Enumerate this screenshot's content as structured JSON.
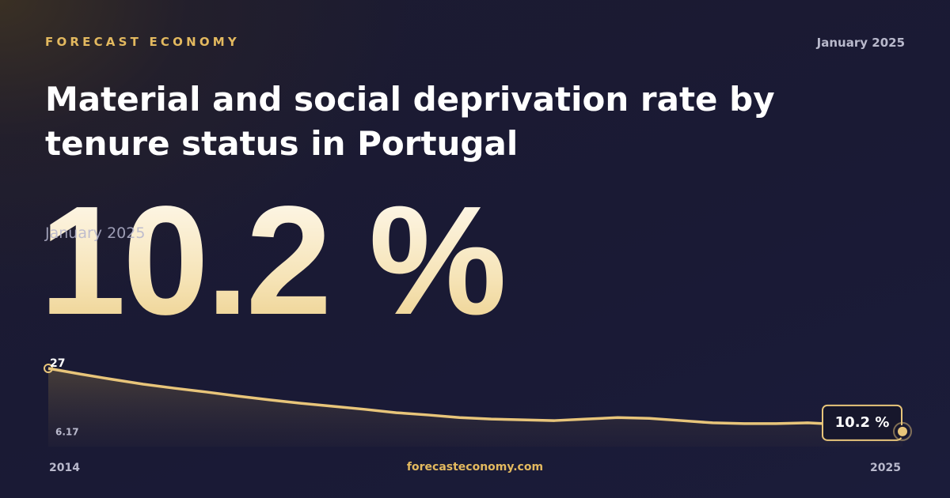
{
  "brand": "FORECAST ECONOMY",
  "date": "January 2025",
  "footer": "forecasteconomy.com",
  "chart_data": {
    "type": "line",
    "title": "Material and social deprivation rate by tenure status in Portugal",
    "categories": [
      "2014",
      null,
      null,
      null,
      null,
      null,
      null,
      null,
      null,
      null,
      null,
      null,
      null,
      null,
      null,
      null,
      null,
      null,
      null,
      null,
      null,
      null,
      null,
      null,
      null,
      null,
      null,
      "2025"
    ],
    "values": [
      27,
      25.5,
      24.1,
      22.8,
      21.7,
      20.7,
      19.6,
      18.6,
      17.7,
      16.9,
      16.1,
      15.2,
      14.6,
      13.9,
      13.5,
      13.3,
      13.1,
      13.5,
      13.9,
      13.7,
      13.1,
      12.5,
      12.3,
      12.3,
      12.5,
      12.1,
      11.4,
      10.2
    ],
    "value_labels": [
      null,
      null,
      null,
      null,
      null,
      null,
      null,
      null,
      null,
      null,
      null,
      null,
      null,
      null,
      null,
      null,
      null,
      null,
      null,
      null,
      null,
      null,
      null,
      null,
      null,
      null,
      null,
      "10.2 %"
    ],
    "color": "#e8c57a",
    "ylim": [
      6.17,
      27
    ],
    "yticks": [
      6.17,
      27
    ]
  }
}
